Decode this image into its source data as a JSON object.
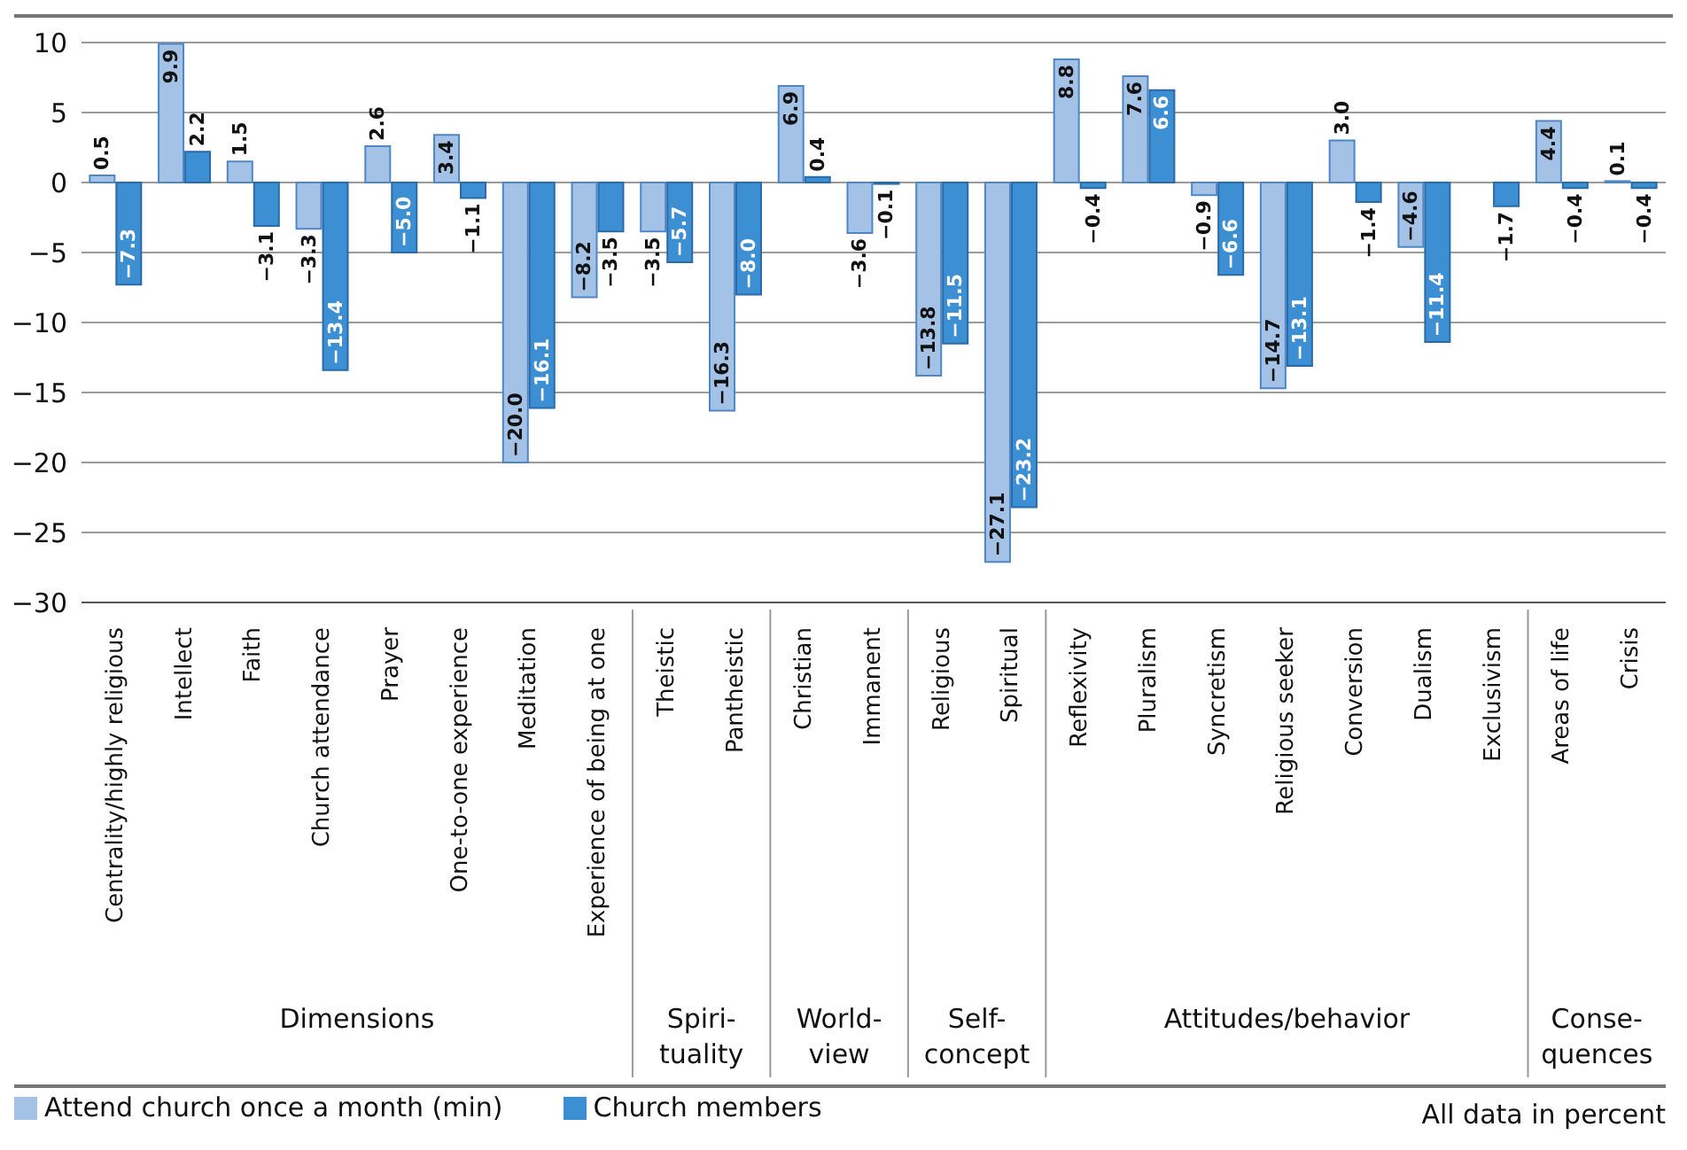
{
  "chart_data": {
    "type": "bar",
    "categories": [
      "Centrality/highly religious",
      "Intellect",
      "Faith",
      "Church attendance",
      "Prayer",
      "One-to-one experience",
      "Meditation",
      "Experience of being at one",
      "Theistic",
      "Pantheistic",
      "Christian",
      "Immanent",
      "Religious",
      "Spiritual",
      "Reflexivity",
      "Pluralism",
      "Syncretism",
      "Religious seeker",
      "Conversion",
      "Dualism",
      "Exclusivism",
      "Areas of life",
      "Crisis"
    ],
    "series": [
      {
        "name": "Attend church once a month (min)",
        "color": "#a4c2e6",
        "values": [
          0.5,
          9.9,
          1.5,
          -3.3,
          2.6,
          3.4,
          -20.0,
          -8.2,
          -3.5,
          -16.3,
          6.9,
          -3.6,
          -13.8,
          -27.1,
          8.8,
          7.6,
          -0.9,
          -14.7,
          3.0,
          -4.6,
          null,
          4.4,
          0.1
        ],
        "value_labels": [
          "0.5",
          "9.9",
          "1.5",
          "−3.3",
          "2.6",
          "3.4",
          "−20.0",
          "−8.2",
          "−3.5",
          "−16.3",
          "6.9",
          "−3.6",
          "−13.8",
          "−27.1",
          "8.8",
          "7.6",
          "−0.9",
          "−14.7",
          "3.0",
          "−4.6",
          null,
          "4.4",
          "0.1"
        ]
      },
      {
        "name": "Church members",
        "color": "#3c8fd2",
        "values": [
          -7.3,
          2.2,
          -3.1,
          -13.4,
          -5.0,
          -1.1,
          -16.1,
          -3.5,
          -5.7,
          -8.0,
          0.4,
          -0.1,
          -11.5,
          -23.2,
          -0.4,
          6.6,
          -6.6,
          -13.1,
          -1.4,
          -11.4,
          -1.7,
          -0.4,
          -0.4
        ],
        "value_labels": [
          "−7.3",
          "2.2",
          "−3.1",
          "−13.4",
          "−5.0",
          "−1.1",
          "−16.1",
          "−3.5",
          "−5.7",
          "−8.0",
          "0.4",
          "−0.1",
          "−11.5",
          "−23.2",
          "−0.4",
          "6.6",
          "−6.6",
          "−13.1",
          "−1.4",
          "−11.4",
          "−1.7",
          "−0.4",
          "−0.4"
        ]
      }
    ],
    "ylim": [
      -30,
      10
    ],
    "yticks": [
      -30,
      -25,
      -20,
      -15,
      -10,
      -5,
      0,
      5,
      10
    ],
    "grid": "y",
    "legend": "bottom left",
    "annotations": [
      "Dimensions",
      "Spiri-tuality",
      "World-view",
      "Self-concept",
      "Attitudes/behavior",
      "Conse-quences",
      "All data in percent"
    ]
  }
}
